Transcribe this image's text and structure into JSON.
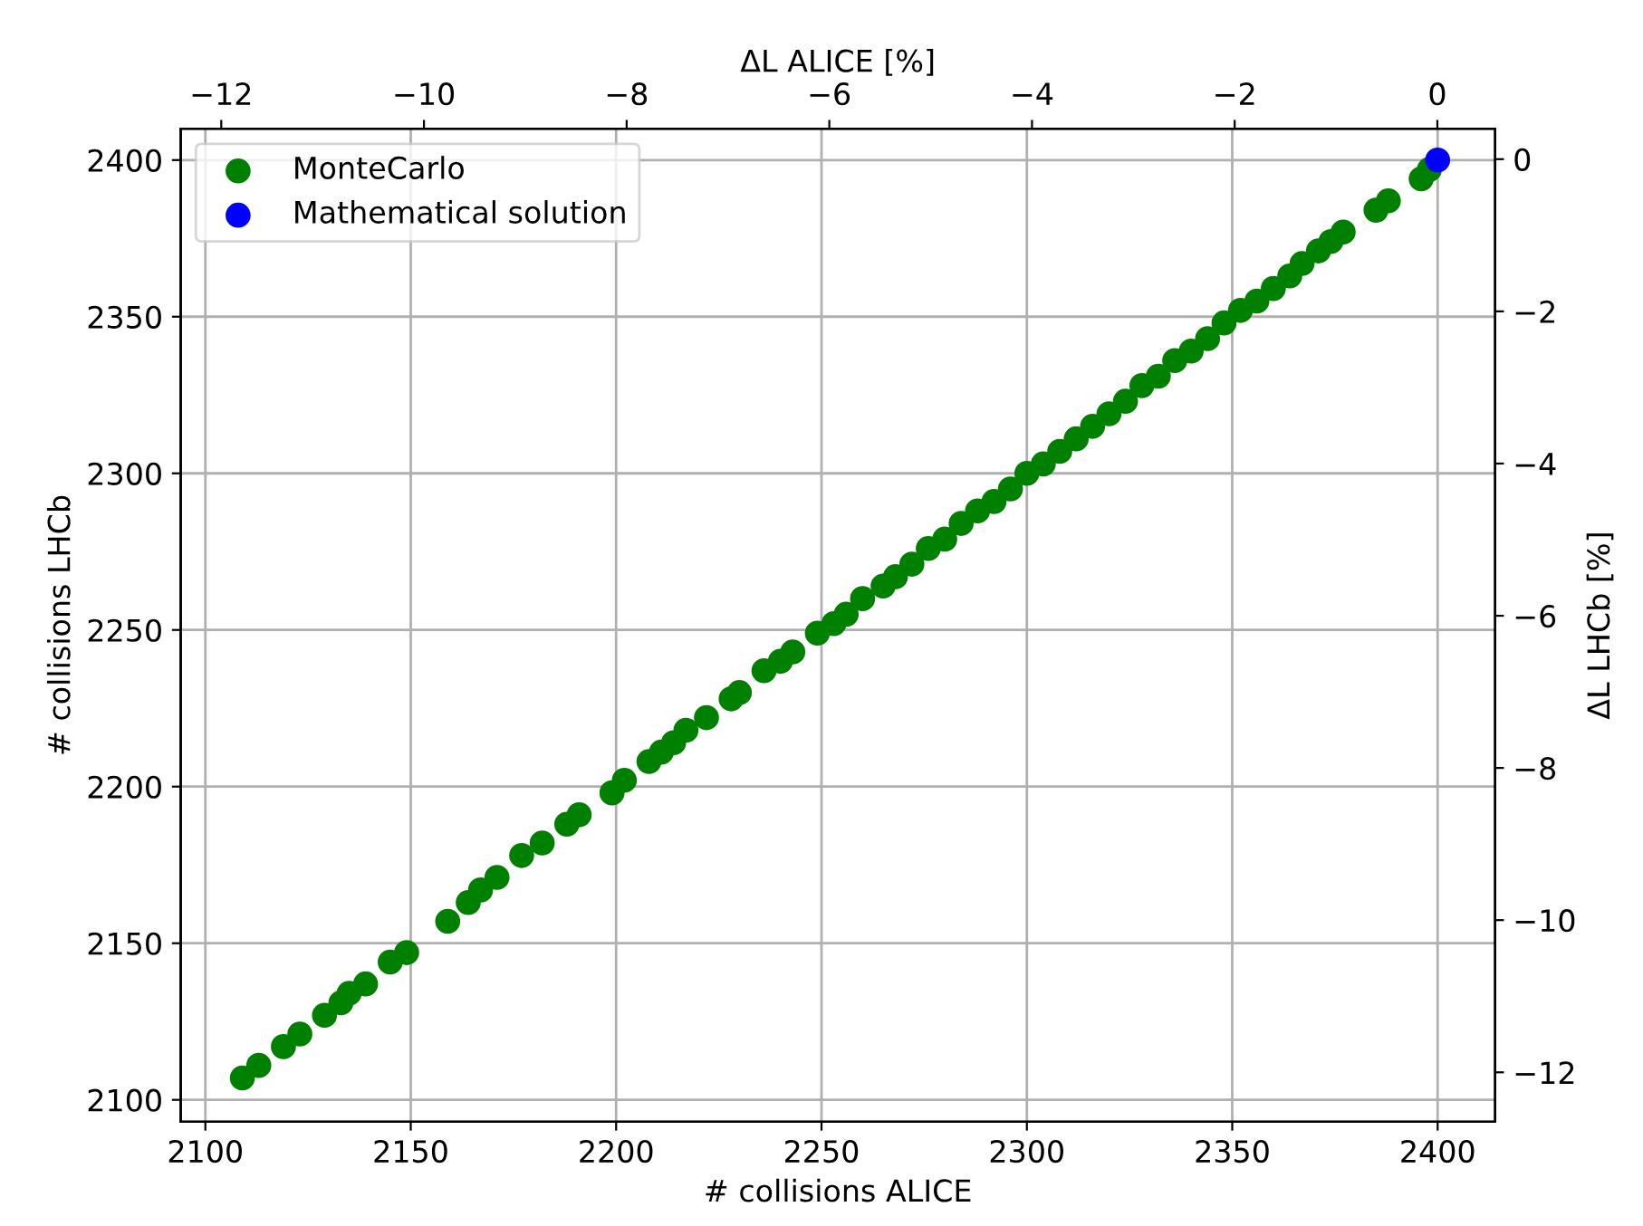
{
  "chart_data": {
    "type": "scatter",
    "xlabel": "# collisions ALICE",
    "ylabel": "# collisions LHCb",
    "x2label": "ΔL ALICE [%]",
    "y2label": "ΔL LHCb [%]",
    "xlim": [
      2094,
      2414
    ],
    "xticks": [
      2100,
      2150,
      2200,
      2250,
      2300,
      2350,
      2400
    ],
    "ylim": [
      2093,
      2410
    ],
    "yticks": [
      2100,
      2150,
      2200,
      2250,
      2300,
      2350,
      2400
    ],
    "x2lim": [
      -12.4,
      0.57
    ],
    "x2ticks": [
      -12,
      -10,
      -8,
      -6,
      -4,
      -2,
      0
    ],
    "y2lim": [
      -12.65,
      0.4
    ],
    "y2ticks": [
      -12,
      -10,
      -8,
      -6,
      -4,
      -2,
      0
    ],
    "grid": true,
    "legend": "top left",
    "marker": "circle",
    "series": [
      {
        "name": "MonteCarlo",
        "color": "#008000",
        "x": [
          2109,
          2113,
          2119,
          2123,
          2129,
          2133,
          2135,
          2139,
          2145,
          2149,
          2159,
          2164,
          2167,
          2171,
          2177,
          2182,
          2188,
          2191,
          2199,
          2202,
          2208,
          2211,
          2214,
          2217,
          2222,
          2228,
          2230,
          2236,
          2240,
          2243,
          2249,
          2253,
          2256,
          2260,
          2265,
          2268,
          2272,
          2276,
          2280,
          2284,
          2288,
          2292,
          2296,
          2300,
          2304,
          2308,
          2312,
          2316,
          2320,
          2324,
          2328,
          2332,
          2336,
          2340,
          2344,
          2348,
          2352,
          2356,
          2360,
          2364,
          2367,
          2371,
          2374,
          2377,
          2385,
          2388,
          2396,
          2398
        ],
        "values": [
          2107,
          2111,
          2117,
          2121,
          2127,
          2131,
          2134,
          2137,
          2144,
          2147,
          2157,
          2163,
          2167,
          2171,
          2178,
          2182,
          2188,
          2191,
          2198,
          2202,
          2208,
          2211,
          2214,
          2218,
          2222,
          2228,
          2230,
          2237,
          2240,
          2243,
          2249,
          2252,
          2255,
          2260,
          2264,
          2267,
          2271,
          2276,
          2279,
          2284,
          2288,
          2291,
          2295,
          2300,
          2303,
          2307,
          2311,
          2315,
          2319,
          2323,
          2328,
          2331,
          2336,
          2339,
          2343,
          2348,
          2352,
          2355,
          2359,
          2363,
          2367,
          2371,
          2374,
          2377,
          2384,
          2387,
          2394,
          2397
        ]
      },
      {
        "name": "Mathematical solution",
        "color": "#0000ff",
        "x": [
          2400
        ],
        "values": [
          2400
        ]
      }
    ]
  }
}
